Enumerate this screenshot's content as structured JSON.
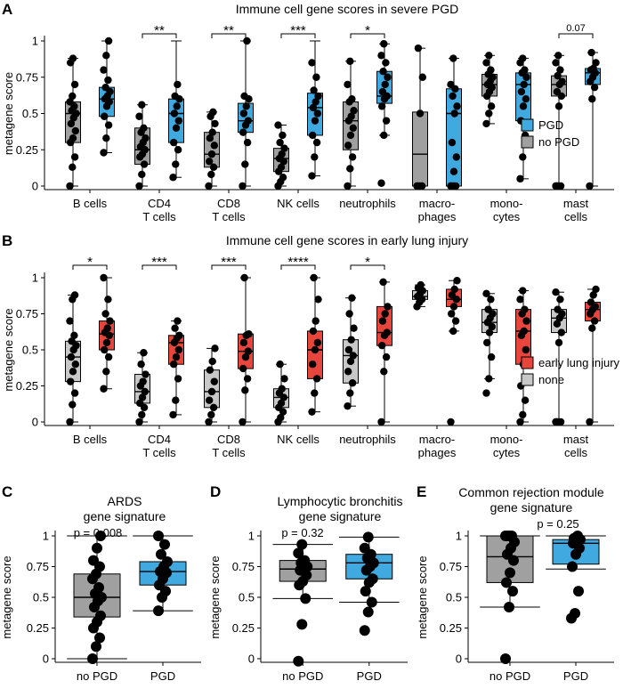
{
  "chart_data": [
    {
      "id": "A",
      "type": "boxplot",
      "panel": "A",
      "title": "Immune cell gene scores in severe PGD",
      "ylabel": "metagene score",
      "ylim": [
        0,
        1
      ],
      "yticks": [
        "0",
        "0.25",
        "0.5",
        "0.75",
        "1"
      ],
      "ytick_values": [
        0,
        0.25,
        0.5,
        0.75,
        1
      ],
      "categories": [
        [
          "B cells"
        ],
        [
          "CD4",
          "T cells"
        ],
        [
          "CD8",
          "T cells"
        ],
        [
          "NK cells"
        ],
        [
          "neutrophils"
        ],
        [
          "macro-",
          "phages"
        ],
        [
          "mono-",
          "cytes"
        ],
        [
          "mast",
          "cells"
        ]
      ],
      "legend": [
        {
          "label": "PGD",
          "color": "#3fa9e0"
        },
        {
          "label": "no PGD",
          "color": "#a0a0a0"
        }
      ],
      "series_order": [
        "no PGD",
        "PGD"
      ],
      "significance": [
        "",
        "**",
        "**",
        "***",
        "*",
        "",
        "",
        "0.07"
      ],
      "boxes": [
        [
          [
            0.0,
            0.3,
            0.5,
            0.58,
            0.88
          ],
          [
            0.23,
            0.48,
            0.6,
            0.68,
            1.0
          ]
        ],
        [
          [
            0.0,
            0.15,
            0.25,
            0.4,
            0.56
          ],
          [
            0.06,
            0.3,
            0.5,
            0.6,
            1.0
          ]
        ],
        [
          [
            0.0,
            0.13,
            0.22,
            0.37,
            0.51
          ],
          [
            0.0,
            0.37,
            0.45,
            0.57,
            1.0
          ]
        ],
        [
          [
            0.0,
            0.1,
            0.19,
            0.26,
            0.42
          ],
          [
            0.07,
            0.35,
            0.54,
            0.64,
            1.0
          ]
        ],
        [
          [
            0.0,
            0.25,
            0.45,
            0.58,
            0.86
          ],
          [
            0.35,
            0.57,
            0.62,
            0.79,
            0.98
          ]
        ],
        [
          [
            0.0,
            0.0,
            0.22,
            0.51,
            0.95
          ],
          [
            0.0,
            0.0,
            0.5,
            0.67,
            0.88
          ]
        ],
        [
          [
            0.43,
            0.62,
            0.7,
            0.77,
            0.9
          ],
          [
            0.05,
            0.45,
            0.7,
            0.78,
            0.88
          ]
        ],
        [
          [
            0.0,
            0.62,
            0.7,
            0.76,
            0.9
          ],
          [
            0.0,
            0.7,
            0.78,
            0.81,
            0.92
          ]
        ]
      ],
      "points": [
        [
          [
            0.0,
            0.13,
            0.2,
            0.3,
            0.33,
            0.38,
            0.43,
            0.47,
            0.5,
            0.52,
            0.55,
            0.58,
            0.62,
            0.7,
            0.85,
            0.88
          ],
          [
            0.23,
            0.33,
            0.42,
            0.48,
            0.55,
            0.58,
            0.6,
            0.62,
            0.65,
            0.68,
            0.73,
            0.8,
            0.9,
            1.0
          ]
        ],
        [
          [
            0.0,
            0.08,
            0.15,
            0.2,
            0.22,
            0.25,
            0.27,
            0.3,
            0.33,
            0.37,
            0.4,
            0.48,
            0.56
          ],
          [
            0.06,
            0.15,
            0.25,
            0.3,
            0.4,
            0.45,
            0.5,
            0.55,
            0.6,
            0.62,
            0.7
          ]
        ],
        [
          [
            0.0,
            0.08,
            0.13,
            0.17,
            0.22,
            0.28,
            0.33,
            0.37,
            0.43,
            0.48,
            0.51
          ],
          [
            0.0,
            0.15,
            0.3,
            0.37,
            0.42,
            0.45,
            0.5,
            0.55,
            0.6,
            0.62,
            1.0
          ]
        ],
        [
          [
            0.0,
            0.03,
            0.06,
            0.1,
            0.13,
            0.17,
            0.19,
            0.22,
            0.26,
            0.3,
            0.35,
            0.42
          ],
          [
            0.07,
            0.2,
            0.3,
            0.35,
            0.45,
            0.5,
            0.54,
            0.58,
            0.62,
            0.66,
            0.75,
            0.85
          ]
        ],
        [
          [
            0.0,
            0.12,
            0.2,
            0.28,
            0.35,
            0.4,
            0.45,
            0.48,
            0.52,
            0.58,
            0.6,
            0.7,
            0.86
          ],
          [
            0.02,
            0.35,
            0.45,
            0.55,
            0.6,
            0.62,
            0.65,
            0.7,
            0.75,
            0.79,
            0.85,
            0.9,
            0.98
          ]
        ],
        [
          [
            0.0,
            0.0,
            0.0,
            0.0,
            0.5,
            0.75,
            0.95
          ],
          [
            0.0,
            0.0,
            0.0,
            0.0,
            0.1,
            0.2,
            0.3,
            0.5,
            0.55,
            0.62,
            0.67,
            0.7,
            0.88
          ]
        ],
        [
          [
            0.43,
            0.5,
            0.55,
            0.62,
            0.65,
            0.68,
            0.7,
            0.72,
            0.75,
            0.77,
            0.8,
            0.85,
            0.9
          ],
          [
            0.05,
            0.2,
            0.35,
            0.45,
            0.55,
            0.6,
            0.65,
            0.7,
            0.75,
            0.78,
            0.8,
            0.85,
            0.88
          ]
        ],
        [
          [
            0.0,
            0.0,
            0.0,
            0.0,
            0.55,
            0.62,
            0.65,
            0.7,
            0.72,
            0.76,
            0.8,
            0.85,
            0.9
          ],
          [
            0.0,
            0.6,
            0.68,
            0.72,
            0.75,
            0.78,
            0.8,
            0.81,
            0.85,
            0.92
          ]
        ]
      ]
    },
    {
      "id": "B",
      "type": "boxplot",
      "panel": "B",
      "title": "Immune cell gene scores in early lung injury",
      "ylabel": "metagene score",
      "ylim": [
        0,
        1
      ],
      "yticks": [
        "0",
        "0.25",
        "0.5",
        "0.75",
        "1"
      ],
      "ytick_values": [
        0,
        0.25,
        0.5,
        0.75,
        1
      ],
      "categories": [
        [
          "B cells"
        ],
        [
          "CD4",
          "T cells"
        ],
        [
          "CD8",
          "T cells"
        ],
        [
          "NK cells"
        ],
        [
          "neutrophils"
        ],
        [
          "macro-",
          "phages"
        ],
        [
          "mono-",
          "cytes"
        ],
        [
          "mast",
          "cells"
        ]
      ],
      "legend": [
        {
          "label": "early lung injury",
          "color": "#e8453c"
        },
        {
          "label": "none",
          "color": "#c8c8c8"
        }
      ],
      "series_order": [
        "none",
        "early lung injury"
      ],
      "significance": [
        "*",
        "***",
        "***",
        "****",
        "*",
        "",
        "",
        ""
      ],
      "boxes": [
        [
          [
            0.0,
            0.28,
            0.45,
            0.56,
            0.88
          ],
          [
            0.23,
            0.5,
            0.61,
            0.7,
            1.0
          ]
        ],
        [
          [
            0.0,
            0.13,
            0.21,
            0.33,
            0.48
          ],
          [
            0.05,
            0.4,
            0.55,
            0.6,
            0.7
          ]
        ],
        [
          [
            0.0,
            0.1,
            0.21,
            0.36,
            0.51
          ],
          [
            0.0,
            0.37,
            0.49,
            0.61,
            1.0
          ]
        ],
        [
          [
            0.0,
            0.1,
            0.17,
            0.23,
            0.4
          ],
          [
            0.07,
            0.3,
            0.5,
            0.63,
            1.0
          ]
        ],
        [
          [
            0.11,
            0.27,
            0.46,
            0.57,
            0.86
          ],
          [
            0.0,
            0.53,
            0.62,
            0.8,
            0.97
          ]
        ],
        [
          [
            0.8,
            0.85,
            0.87,
            0.91,
            0.95
          ],
          [
            0.63,
            0.8,
            0.85,
            0.92,
            0.98
          ]
        ],
        [
          [
            0.3,
            0.62,
            0.69,
            0.78,
            0.89
          ],
          [
            0.0,
            0.4,
            0.63,
            0.78,
            0.91
          ]
        ],
        [
          [
            0.0,
            0.62,
            0.72,
            0.78,
            0.9
          ],
          [
            0.0,
            0.7,
            0.78,
            0.83,
            0.92
          ]
        ]
      ],
      "points": [
        [
          [
            0.0,
            0.12,
            0.2,
            0.28,
            0.35,
            0.4,
            0.45,
            0.5,
            0.53,
            0.56,
            0.6,
            0.7,
            0.85,
            0.88
          ],
          [
            0.23,
            0.35,
            0.45,
            0.5,
            0.55,
            0.6,
            0.62,
            0.65,
            0.7,
            0.75,
            0.85,
            1.0
          ]
        ],
        [
          [
            0.0,
            0.05,
            0.1,
            0.13,
            0.17,
            0.21,
            0.25,
            0.28,
            0.33,
            0.4,
            0.48
          ],
          [
            0.05,
            0.15,
            0.3,
            0.4,
            0.45,
            0.5,
            0.55,
            0.58,
            0.6,
            0.65,
            0.7
          ]
        ],
        [
          [
            0.0,
            0.05,
            0.1,
            0.15,
            0.21,
            0.28,
            0.36,
            0.42,
            0.51
          ],
          [
            0.0,
            0.22,
            0.3,
            0.37,
            0.45,
            0.49,
            0.55,
            0.6,
            0.61,
            1.0
          ]
        ],
        [
          [
            0.0,
            0.03,
            0.07,
            0.1,
            0.13,
            0.17,
            0.2,
            0.23,
            0.3,
            0.4
          ],
          [
            0.07,
            0.2,
            0.3,
            0.4,
            0.5,
            0.55,
            0.63,
            0.7,
            0.85,
            1.0
          ]
        ],
        [
          [
            0.11,
            0.2,
            0.27,
            0.35,
            0.42,
            0.46,
            0.5,
            0.57,
            0.65,
            0.75,
            0.86
          ],
          [
            0.0,
            0.35,
            0.45,
            0.53,
            0.6,
            0.62,
            0.7,
            0.75,
            0.8,
            0.97
          ]
        ],
        [
          [
            0.8,
            0.83,
            0.85,
            0.87,
            0.89,
            0.91,
            0.93,
            0.95
          ],
          [
            0.0,
            0.63,
            0.7,
            0.75,
            0.8,
            0.85,
            0.88,
            0.92,
            0.98
          ]
        ],
        [
          [
            0.2,
            0.3,
            0.45,
            0.55,
            0.62,
            0.66,
            0.69,
            0.72,
            0.75,
            0.78,
            0.85,
            0.89
          ],
          [
            0.0,
            0.05,
            0.15,
            0.25,
            0.4,
            0.5,
            0.6,
            0.63,
            0.7,
            0.75,
            0.78,
            0.85,
            0.91
          ]
        ],
        [
          [
            0.0,
            0.0,
            0.0,
            0.0,
            0.55,
            0.62,
            0.68,
            0.72,
            0.75,
            0.78,
            0.85,
            0.9
          ],
          [
            0.0,
            0.65,
            0.7,
            0.75,
            0.78,
            0.8,
            0.83,
            0.88,
            0.92
          ]
        ]
      ]
    },
    {
      "id": "C",
      "type": "boxplot",
      "panel": "C",
      "title": [
        "ARDS",
        "gene signature"
      ],
      "ylabel": "metagene score",
      "ylim": [
        0,
        1
      ],
      "yticks": [
        "0",
        "0.25",
        "0.5",
        "0.75",
        "1"
      ],
      "ytick_values": [
        0,
        0.25,
        0.5,
        0.75,
        1
      ],
      "categories": [
        "no PGD",
        "PGD"
      ],
      "colors": [
        "#a0a0a0",
        "#3fa9e0"
      ],
      "pvalue": "p = 0.008",
      "boxes": [
        [
          0.0,
          0.34,
          0.5,
          0.69,
          1.0
        ],
        [
          0.39,
          0.6,
          0.71,
          0.79,
          1.0
        ]
      ],
      "points": [
        [
          0.0,
          0.1,
          0.17,
          0.25,
          0.3,
          0.35,
          0.42,
          0.47,
          0.5,
          0.53,
          0.58,
          0.65,
          0.69,
          0.75,
          0.8,
          0.9,
          1.0
        ],
        [
          0.39,
          0.5,
          0.55,
          0.6,
          0.65,
          0.7,
          0.71,
          0.75,
          0.79,
          0.85,
          0.93,
          1.0
        ]
      ]
    },
    {
      "id": "D",
      "type": "boxplot",
      "panel": "D",
      "title": [
        "Lymphocytic bronchitis",
        "gene signature"
      ],
      "ylabel": "metagene score",
      "ylim": [
        0,
        1
      ],
      "yticks": [
        "0",
        "0.25",
        "0.5",
        "0.75",
        "1"
      ],
      "ytick_values": [
        0,
        0.25,
        0.5,
        0.75,
        1
      ],
      "categories": [
        "no PGD",
        "PGD"
      ],
      "colors": [
        "#a0a0a0",
        "#3fa9e0"
      ],
      "pvalue": "p = 0.32",
      "boxes": [
        [
          0.49,
          0.63,
          0.73,
          0.8,
          0.93
        ],
        [
          0.46,
          0.65,
          0.78,
          0.85,
          0.99
        ]
      ],
      "points": [
        [
          -0.02,
          0.28,
          0.49,
          0.6,
          0.63,
          0.68,
          0.72,
          0.73,
          0.75,
          0.78,
          0.8,
          0.86,
          0.93
        ],
        [
          0.23,
          0.38,
          0.46,
          0.55,
          0.62,
          0.65,
          0.72,
          0.75,
          0.78,
          0.82,
          0.85,
          0.9,
          0.99
        ]
      ]
    },
    {
      "id": "E",
      "type": "boxplot",
      "panel": "E",
      "title": [
        "Common rejection module",
        "gene signature"
      ],
      "ylabel": "metagene score",
      "ylim": [
        0,
        1
      ],
      "yticks": [
        "0",
        "0.25",
        "0.5",
        "0.75",
        "1"
      ],
      "ytick_values": [
        0,
        0.25,
        0.5,
        0.75,
        1
      ],
      "categories": [
        "no PGD",
        "PGD"
      ],
      "colors": [
        "#a0a0a0",
        "#3fa9e0"
      ],
      "pvalue": "p = 0.25",
      "boxes": [
        [
          0.42,
          0.62,
          0.83,
          1.0,
          1.0
        ],
        [
          0.73,
          0.77,
          0.94,
          0.97,
          1.0
        ]
      ],
      "points": [
        [
          0.0,
          0.42,
          0.55,
          0.62,
          0.7,
          0.8,
          0.85,
          0.9,
          0.95,
          1.0,
          1.0,
          1.0,
          1.0
        ],
        [
          0.33,
          0.37,
          0.55,
          0.75,
          0.85,
          0.9,
          0.94,
          0.96,
          0.97,
          0.98,
          1.0
        ]
      ]
    }
  ]
}
